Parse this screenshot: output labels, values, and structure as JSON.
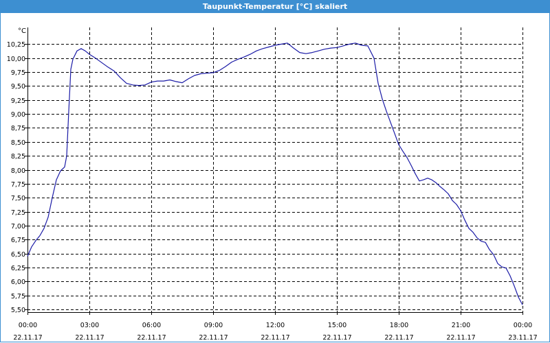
{
  "window": {
    "title": "Taupunkt-Temperatur [°C] skaliert"
  },
  "colors": {
    "titlebar": "#3d8fd1",
    "series": "#1a1aa6",
    "grid": "#000000"
  },
  "chart_data": {
    "type": "line",
    "title": "Taupunkt-Temperatur [°C] skaliert",
    "ylabel": "°C",
    "xlabel": "",
    "ylim": [
      5.45,
      10.55
    ],
    "xlim": [
      0,
      24
    ],
    "grid": true,
    "y_ticks": [
      "5,50",
      "5,75",
      "6,00",
      "6,25",
      "6,50",
      "6,75",
      "7,00",
      "7,25",
      "7,50",
      "7,75",
      "8,00",
      "8,25",
      "8,50",
      "8,75",
      "9,00",
      "9,25",
      "9,50",
      "9,75",
      "10,00",
      "10,25"
    ],
    "x_ticks": [
      {
        "time": "00:00",
        "date": "22.11.17"
      },
      {
        "time": "03:00",
        "date": "22.11.17"
      },
      {
        "time": "06:00",
        "date": "22.11.17"
      },
      {
        "time": "09:00",
        "date": "22.11.17"
      },
      {
        "time": "12:00",
        "date": "22.11.17"
      },
      {
        "time": "15:00",
        "date": "22.11.17"
      },
      {
        "time": "18:00",
        "date": "22.11.17"
      },
      {
        "time": "21:00",
        "date": "22.11.17"
      },
      {
        "time": "00:00",
        "date": "23.11.17"
      }
    ],
    "series": [
      {
        "x": [
          0.0,
          0.2,
          0.4,
          0.6,
          0.8,
          1.0,
          1.2,
          1.4,
          1.6,
          1.8,
          1.9,
          2.0,
          2.1,
          2.2,
          2.4,
          2.6,
          2.8,
          3.0,
          3.3,
          3.6,
          3.9,
          4.2,
          4.5,
          4.8,
          5.1,
          5.4,
          5.7,
          6.0,
          6.3,
          6.6,
          6.9,
          7.2,
          7.5,
          7.8,
          8.1,
          8.4,
          8.7,
          9.0,
          9.3,
          9.6,
          9.9,
          10.2,
          10.5,
          10.8,
          11.1,
          11.4,
          11.7,
          12.0,
          12.3,
          12.6,
          12.9,
          13.2,
          13.5,
          13.8,
          14.1,
          14.4,
          14.7,
          15.0,
          15.3,
          15.6,
          15.9,
          16.2,
          16.5,
          16.8,
          17.0,
          17.2,
          17.4,
          17.6,
          17.8,
          18.0,
          18.2,
          18.4,
          18.6,
          18.8,
          19.0,
          19.2,
          19.4,
          19.6,
          19.8,
          20.0,
          20.2,
          20.4,
          20.6,
          20.8,
          21.0,
          21.2,
          21.4,
          21.6,
          21.8,
          22.0,
          22.2,
          22.4,
          22.6,
          22.8,
          23.0,
          23.2,
          23.4,
          23.6,
          23.8,
          24.0
        ],
        "y": [
          6.45,
          6.62,
          6.73,
          6.82,
          6.95,
          7.15,
          7.5,
          7.82,
          7.98,
          8.05,
          8.25,
          9.05,
          9.8,
          9.98,
          10.13,
          10.17,
          10.13,
          10.07,
          10.0,
          9.92,
          9.84,
          9.77,
          9.65,
          9.55,
          9.52,
          9.51,
          9.52,
          9.57,
          9.59,
          9.59,
          9.61,
          9.58,
          9.56,
          9.63,
          9.69,
          9.72,
          9.73,
          9.74,
          9.78,
          9.85,
          9.93,
          9.98,
          10.02,
          10.07,
          10.13,
          10.17,
          10.2,
          10.23,
          10.25,
          10.27,
          10.18,
          10.1,
          10.08,
          10.1,
          10.13,
          10.16,
          10.18,
          10.19,
          10.22,
          10.25,
          10.27,
          10.23,
          10.22,
          10.0,
          9.55,
          9.27,
          9.05,
          8.85,
          8.65,
          8.45,
          8.33,
          8.22,
          8.08,
          7.93,
          7.8,
          7.82,
          7.85,
          7.82,
          7.77,
          7.7,
          7.64,
          7.57,
          7.45,
          7.38,
          7.27,
          7.1,
          6.95,
          6.88,
          6.78,
          6.72,
          6.7,
          6.57,
          6.48,
          6.32,
          6.26,
          6.24,
          6.1,
          5.92,
          5.72,
          5.58
        ]
      }
    ]
  }
}
